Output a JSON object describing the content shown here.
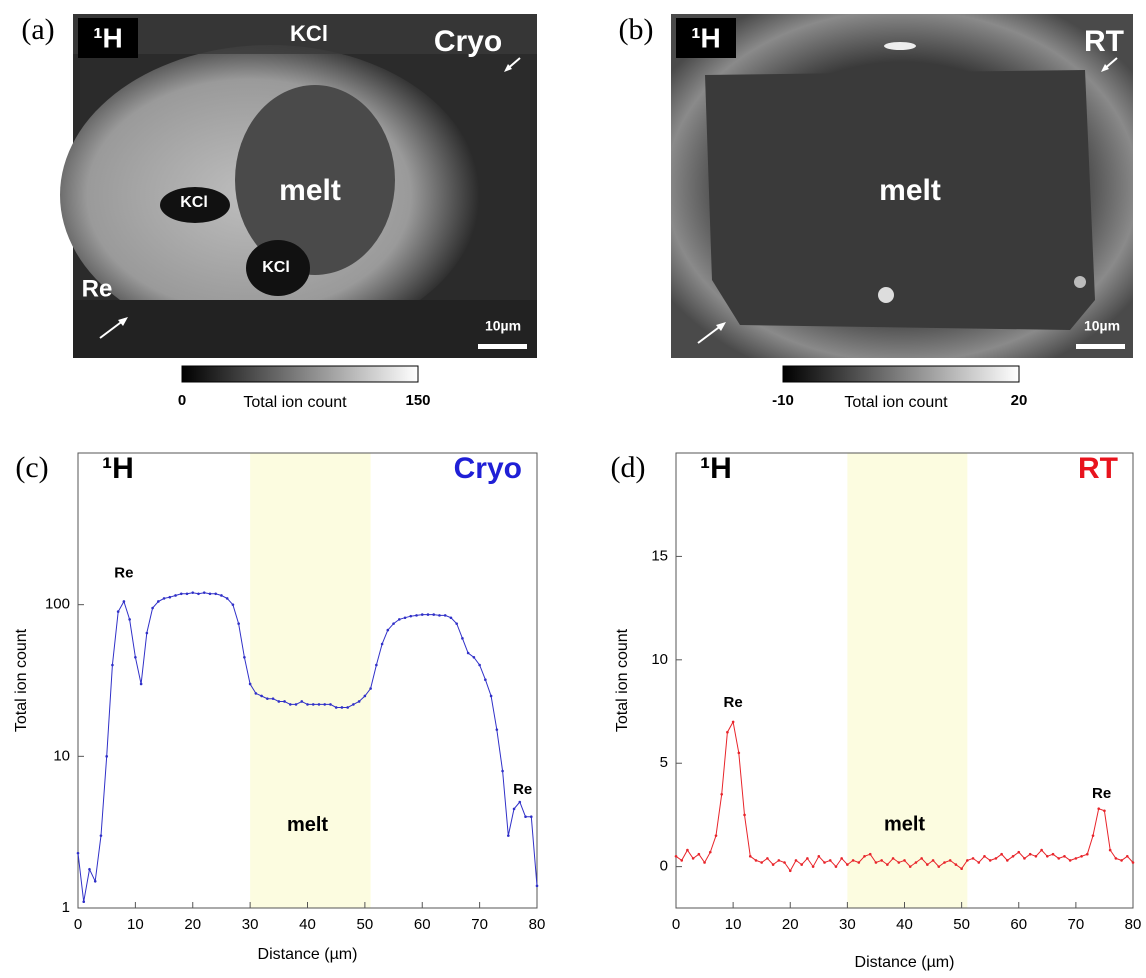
{
  "panels": [
    {
      "label": "(a)",
      "isotope": "¹H",
      "texts": [
        "KCl",
        "Cryo",
        "melt",
        "KCl",
        "KCl",
        "Re"
      ],
      "scale_bar": "10µm",
      "colorbar": {
        "min": 0,
        "max": 150,
        "label": "Total ion count"
      }
    },
    {
      "label": "(b)",
      "isotope": "¹H",
      "texts": [
        "RT",
        "melt"
      ],
      "scale_bar": "10µm",
      "colorbar": {
        "min": -10,
        "max": 20,
        "label": "Total ion count"
      }
    }
  ],
  "chart_data": [
    {
      "type": "line",
      "panel_label": "(c)",
      "title": "¹H",
      "subtitle": "Cryo",
      "subtitle_color": "#1f1fd6",
      "xlabel": "Distance (µm)",
      "ylabel": "Total ion count",
      "log_y": true,
      "xlim": [
        0,
        80
      ],
      "xticks": [
        0,
        10,
        20,
        30,
        40,
        50,
        60,
        70,
        80
      ],
      "ylim": [
        1,
        1000
      ],
      "yticks": [
        1,
        10,
        100
      ],
      "highlight": {
        "x": [
          30,
          51
        ],
        "color": "#fcfce0"
      },
      "x": [
        0,
        1,
        2,
        3,
        4,
        5,
        6,
        7,
        8,
        9,
        10,
        11,
        12,
        13,
        14,
        15,
        16,
        17,
        18,
        19,
        20,
        21,
        22,
        23,
        24,
        25,
        26,
        27,
        28,
        29,
        30,
        31,
        32,
        33,
        34,
        35,
        36,
        37,
        38,
        39,
        40,
        41,
        42,
        43,
        44,
        45,
        46,
        47,
        48,
        49,
        50,
        51,
        52,
        53,
        54,
        55,
        56,
        57,
        58,
        59,
        60,
        61,
        62,
        63,
        64,
        65,
        66,
        67,
        68,
        69,
        70,
        71,
        72,
        73,
        74,
        75,
        76,
        77,
        78,
        79,
        80
      ],
      "color": "#3030c8",
      "values": [
        2.3,
        1.1,
        1.8,
        1.5,
        3,
        10,
        40,
        90,
        105,
        80,
        45,
        30,
        65,
        95,
        105,
        110,
        112,
        115,
        118,
        118,
        120,
        118,
        120,
        118,
        118,
        115,
        110,
        100,
        75,
        45,
        30,
        26,
        25,
        24,
        24,
        23,
        23,
        22,
        22,
        23,
        22,
        22,
        22,
        22,
        22,
        21,
        21,
        21,
        22,
        23,
        25,
        28,
        40,
        55,
        68,
        75,
        80,
        82,
        84,
        85,
        86,
        86,
        86,
        85,
        85,
        82,
        75,
        60,
        48,
        45,
        40,
        32,
        25,
        15,
        8,
        3,
        4.5,
        5,
        4,
        4,
        1.4
      ],
      "annotations": [
        {
          "text": "Re",
          "x": 8,
          "y": 160
        },
        {
          "text": "Re",
          "x": 77.5,
          "y": 6
        },
        {
          "text": "melt",
          "x": 40,
          "y": 3.5
        }
      ]
    },
    {
      "type": "line",
      "panel_label": "(d)",
      "title": "¹H",
      "subtitle": "RT",
      "subtitle_color": "#e8141e",
      "xlabel": "Distance (µm)",
      "ylabel": "Total ion count",
      "log_y": false,
      "xlim": [
        0,
        80
      ],
      "xticks": [
        0,
        10,
        20,
        30,
        40,
        50,
        60,
        70,
        80
      ],
      "ylim": [
        -2,
        20
      ],
      "yticks": [
        0,
        5,
        10,
        15
      ],
      "highlight": {
        "x": [
          30,
          51
        ],
        "color": "#fcfce0"
      },
      "x": [
        0,
        1,
        2,
        3,
        4,
        5,
        6,
        7,
        8,
        9,
        10,
        11,
        12,
        13,
        14,
        15,
        16,
        17,
        18,
        19,
        20,
        21,
        22,
        23,
        24,
        25,
        26,
        27,
        28,
        29,
        30,
        31,
        32,
        33,
        34,
        35,
        36,
        37,
        38,
        39,
        40,
        41,
        42,
        43,
        44,
        45,
        46,
        47,
        48,
        49,
        50,
        51,
        52,
        53,
        54,
        55,
        56,
        57,
        58,
        59,
        60,
        61,
        62,
        63,
        64,
        65,
        66,
        67,
        68,
        69,
        70,
        71,
        72,
        73,
        74,
        75,
        76,
        77,
        78,
        79,
        80
      ],
      "color": "#e8242a",
      "values": [
        0.5,
        0.3,
        0.8,
        0.4,
        0.6,
        0.2,
        0.7,
        1.5,
        3.5,
        6.5,
        7,
        5.5,
        2.5,
        0.5,
        0.3,
        0.2,
        0.4,
        0.1,
        0.3,
        0.2,
        -0.2,
        0.3,
        0.1,
        0.4,
        0,
        0.5,
        0.2,
        0.3,
        0,
        0.4,
        0.1,
        0.3,
        0.2,
        0.5,
        0.6,
        0.2,
        0.3,
        0.1,
        0.4,
        0.2,
        0.3,
        0,
        0.2,
        0.4,
        0.1,
        0.3,
        0,
        0.2,
        0.3,
        0.1,
        -0.1,
        0.3,
        0.4,
        0.2,
        0.5,
        0.3,
        0.4,
        0.6,
        0.3,
        0.5,
        0.7,
        0.4,
        0.6,
        0.5,
        0.8,
        0.5,
        0.6,
        0.4,
        0.5,
        0.3,
        0.4,
        0.5,
        0.6,
        1.5,
        2.8,
        2.7,
        0.8,
        0.4,
        0.3,
        0.5,
        0.2
      ],
      "annotations": [
        {
          "text": "Re",
          "x": 10,
          "y": 7.9
        },
        {
          "text": "Re",
          "x": 74.5,
          "y": 3.5
        },
        {
          "text": "melt",
          "x": 40,
          "y": 2
        }
      ]
    }
  ]
}
